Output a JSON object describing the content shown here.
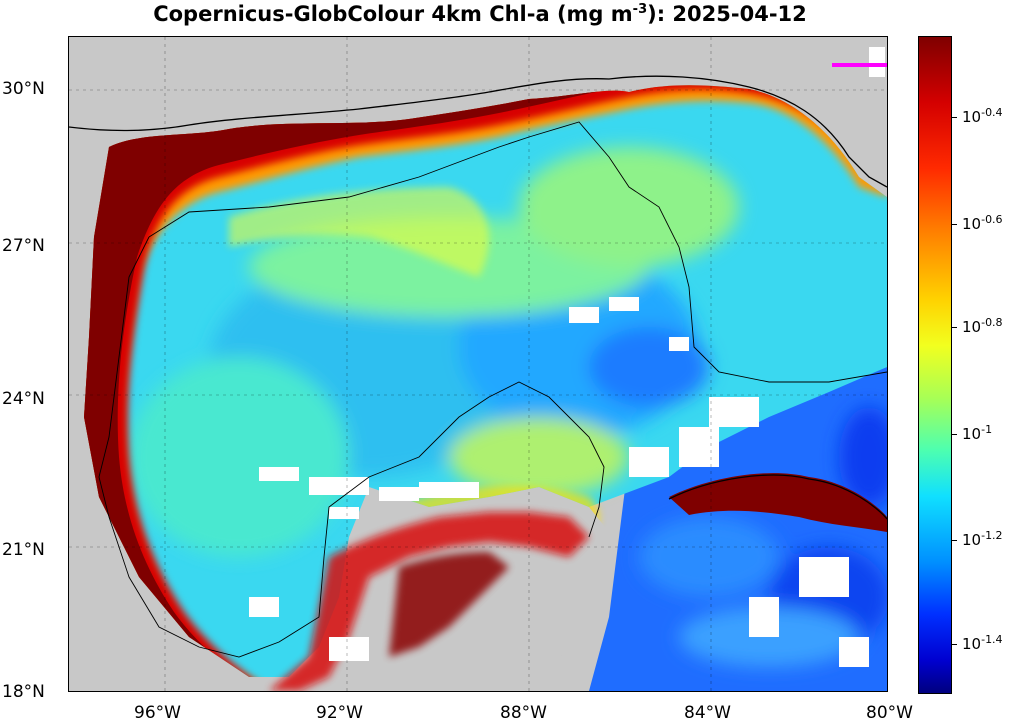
{
  "title": {
    "main": "Copernicus-GlobColour 4km Chl-a (mg m",
    "exponent": "-3",
    "tail": "): 2025-04-12"
  },
  "axes": {
    "lat_ticks": [
      {
        "base": "30",
        "deg": "°",
        "hem": "N"
      },
      {
        "base": "27",
        "deg": "°",
        "hem": "N"
      },
      {
        "base": "24",
        "deg": "°",
        "hem": "N"
      },
      {
        "base": "21",
        "deg": "°",
        "hem": "N"
      },
      {
        "base": "18",
        "deg": "°",
        "hem": "N"
      }
    ],
    "lon_ticks": [
      {
        "base": "96",
        "deg": "°",
        "hem": "W"
      },
      {
        "base": "92",
        "deg": "°",
        "hem": "W"
      },
      {
        "base": "88",
        "deg": "°",
        "hem": "W"
      },
      {
        "base": "84",
        "deg": "°",
        "hem": "W"
      },
      {
        "base": "80",
        "deg": "°",
        "hem": "W"
      }
    ],
    "lat_range": [
      18,
      31
    ],
    "lon_range": [
      -98,
      -80
    ]
  },
  "colorbar": {
    "labels": [
      {
        "base": "10",
        "exp": "-0.4"
      },
      {
        "base": "10",
        "exp": "-0.6"
      },
      {
        "base": "10",
        "exp": "-0.8"
      },
      {
        "base": "10",
        "exp": "-1"
      },
      {
        "base": "10",
        "exp": "-1.2"
      },
      {
        "base": "10",
        "exp": "-1.4"
      }
    ],
    "colormap": "jet",
    "scale": "log"
  },
  "colors": {
    "land": "#c8c8c8",
    "coast_high": "#7f0000",
    "open_gulf": "#3ad8f0",
    "caribbean": "#1560ff",
    "cloud_mask": "#ffffff",
    "marker": "#ff00ff"
  }
}
